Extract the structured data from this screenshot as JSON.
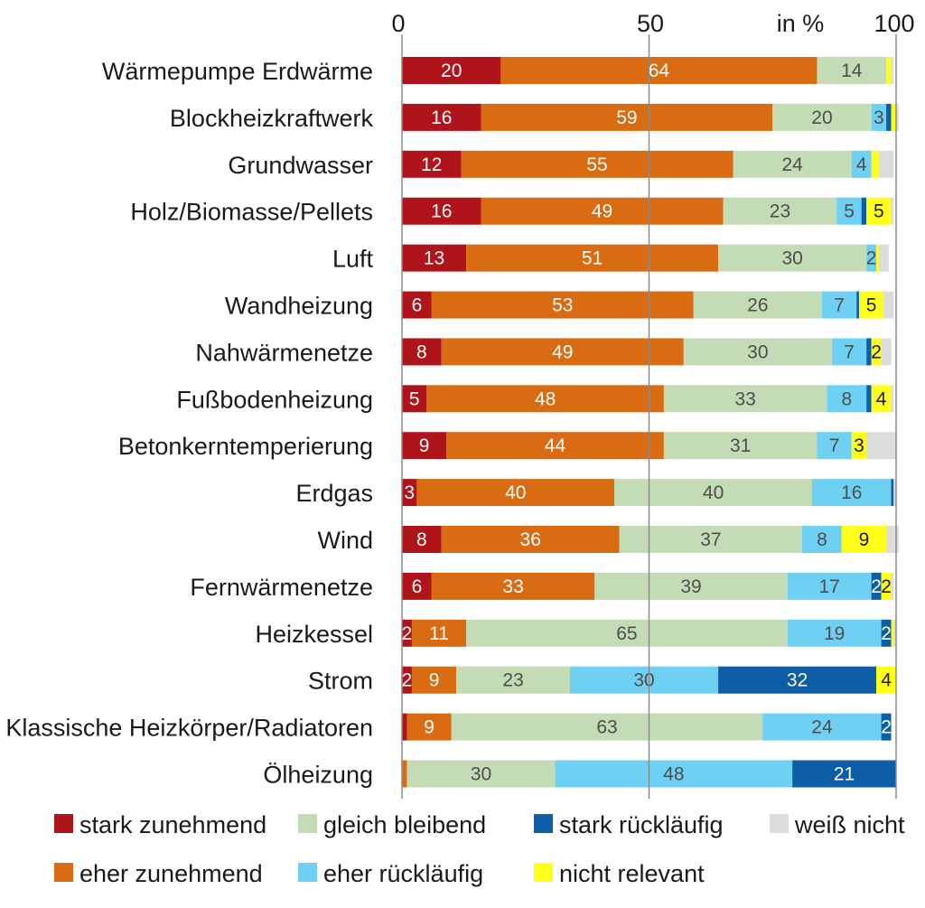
{
  "chart_data": {
    "type": "bar",
    "orientation": "horizontal",
    "stacked": true,
    "xlim": [
      0,
      100
    ],
    "x_ticks": [
      "0",
      "50",
      "100"
    ],
    "unit_label": "in %",
    "grid": "vertical line at 50",
    "legend_position": "bottom",
    "categories": [
      "Wärmepumpe Erdwärme",
      "Blockheizkraftwerk",
      "Grundwasser",
      "Holz/Biomasse/Pellets",
      "Luft",
      "Wandheizung",
      "Nahwärmenetze",
      "Fußbodenheizung",
      "Betonkerntemperierung",
      "Erdgas",
      "Wind",
      "Fernwärmenetze",
      "Heizkessel",
      "Strom",
      "Klassische Heizkörper/Radiatoren",
      "Ölheizung"
    ],
    "series": [
      {
        "name": "stark zunehmend",
        "color": "#b0141b",
        "text_color": "#ffffff",
        "values": [
          20,
          16,
          12,
          16,
          13,
          6,
          8,
          5,
          9,
          3,
          8,
          6,
          2,
          2,
          1,
          0
        ]
      },
      {
        "name": "eher zunehmend",
        "color": "#d96b12",
        "text_color": "#ffffff",
        "values": [
          64,
          59,
          55,
          49,
          51,
          53,
          49,
          48,
          44,
          40,
          36,
          33,
          11,
          9,
          9,
          1
        ]
      },
      {
        "name": "gleich bleibend",
        "color": "#c3dcb6",
        "text_color": "#4d4d4d",
        "values": [
          14,
          20,
          24,
          23,
          30,
          26,
          30,
          33,
          31,
          40,
          37,
          39,
          65,
          23,
          63,
          30
        ]
      },
      {
        "name": "eher rückläufig",
        "color": "#6ed0f2",
        "text_color": "#4d4d4d",
        "values": [
          0,
          3,
          4,
          5,
          2,
          7,
          7,
          8,
          7,
          16,
          8,
          17,
          19,
          30,
          24,
          48
        ]
      },
      {
        "name": "stark rückläufig",
        "color": "#0d5ea6",
        "text_color": "#ffffff",
        "values": [
          0,
          1,
          0,
          1,
          0,
          0.5,
          1,
          1,
          0,
          0.5,
          0,
          2,
          2,
          32,
          2,
          21
        ]
      },
      {
        "name": "nicht relevant",
        "color": "#ffff1a",
        "text_color": "#1a1a1a",
        "values": [
          1,
          1,
          1.5,
          5,
          0.5,
          5,
          2,
          4,
          3,
          0,
          9,
          2,
          0.5,
          4,
          0,
          0
        ]
      },
      {
        "name": "weiß nicht",
        "color": "#dcdcdc",
        "text_color": "#4d4d4d",
        "values": [
          0.5,
          0.5,
          3,
          0.5,
          2,
          2,
          2,
          0.5,
          6,
          0.5,
          2.5,
          0.5,
          0.5,
          0,
          0,
          0
        ]
      }
    ],
    "data_labels": [
      [
        "20",
        "64",
        "14",
        "",
        "",
        "",
        ""
      ],
      [
        "16",
        "59",
        "20",
        "3",
        "",
        "",
        ""
      ],
      [
        "12",
        "55",
        "24",
        "4",
        "",
        "",
        ""
      ],
      [
        "16",
        "49",
        "23",
        "5",
        "",
        "5",
        ""
      ],
      [
        "13",
        "51",
        "30",
        "2",
        "",
        "",
        ""
      ],
      [
        "6",
        "53",
        "26",
        "7",
        "",
        "5",
        ""
      ],
      [
        "8",
        "49",
        "30",
        "7",
        "",
        "2",
        ""
      ],
      [
        "5",
        "48",
        "33",
        "8",
        "",
        "4",
        ""
      ],
      [
        "9",
        "44",
        "31",
        "7",
        "",
        "3",
        ""
      ],
      [
        "3",
        "40",
        "40",
        "16",
        "",
        "",
        ""
      ],
      [
        "8",
        "36",
        "37",
        "8",
        "",
        "9",
        ""
      ],
      [
        "6",
        "33",
        "39",
        "17",
        "2",
        "2",
        ""
      ],
      [
        "2",
        "11",
        "65",
        "19",
        "2",
        "",
        ""
      ],
      [
        "2",
        "9",
        "23",
        "30",
        "32",
        "4",
        ""
      ],
      [
        "",
        "9",
        "63",
        "24",
        "2",
        "",
        ""
      ],
      [
        "",
        "",
        "30",
        "48",
        "21",
        "",
        ""
      ]
    ],
    "legend_order": [
      0,
      2,
      4,
      6,
      1,
      3,
      5
    ]
  }
}
